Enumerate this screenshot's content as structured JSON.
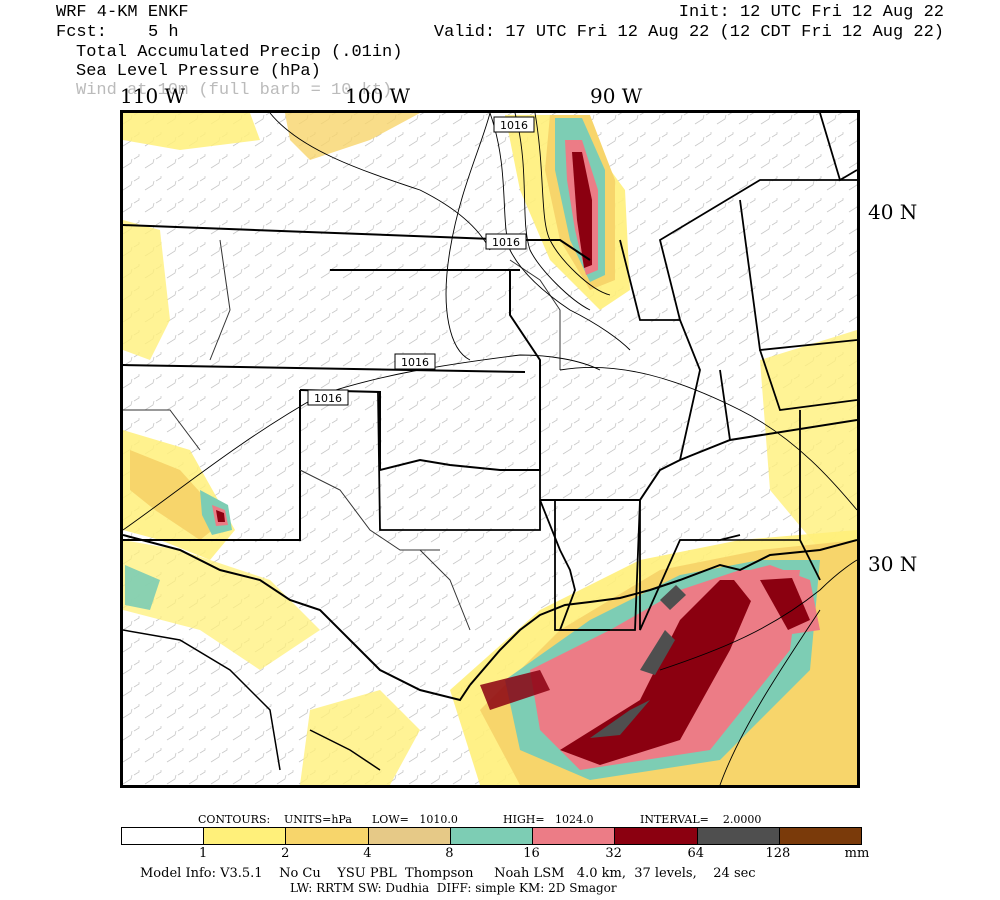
{
  "header": {
    "model": "WRF 4-KM ENKF",
    "fcst_label": "Fcst:",
    "fcst_value": "5 h",
    "init": "Init: 12 UTC Fri 12 Aug 22",
    "valid": "Valid: 17 UTC Fri 12 Aug 22 (12 CDT Fri 12 Aug 22)",
    "field1": "Total Accumulated Precip (.01in)",
    "field2": "Sea Level Pressure (hPa)",
    "field3": "Wind at 10m (full barb = 10 kt)"
  },
  "longitudes": [
    "110 W",
    "100 W",
    "90 W"
  ],
  "latitudes": [
    "40 N",
    "30 N"
  ],
  "isobar_labels": [
    "1016",
    "1016",
    "1016",
    "1016"
  ],
  "contours_info": {
    "contours": "CONTOURS:",
    "units": "UNITS=hPa",
    "low": "LOW=   1010.0",
    "high": "HIGH=   1024.0",
    "interval": "INTERVAL=    2.0000"
  },
  "colorbar": {
    "labels": [
      "1",
      "2",
      "4",
      "8",
      "16",
      "32",
      "64",
      "128"
    ],
    "unit": "mm",
    "colors": [
      "#ffffff",
      "#fff07a",
      "#f7d56b",
      "#e6c987",
      "#7dcdb4",
      "#ec7c86",
      "#8b0010",
      "#4f4f4f",
      "#7a3a0a"
    ]
  },
  "footer": {
    "line1": "Model Info: V3.5.1    No Cu    YSU PBL  Thompson     Noah LSM   4.0 km,  37 levels,    24 sec",
    "line2": "LW: RRTM SW: Dudhia  DIFF: simple KM: 2D Smagor"
  }
}
